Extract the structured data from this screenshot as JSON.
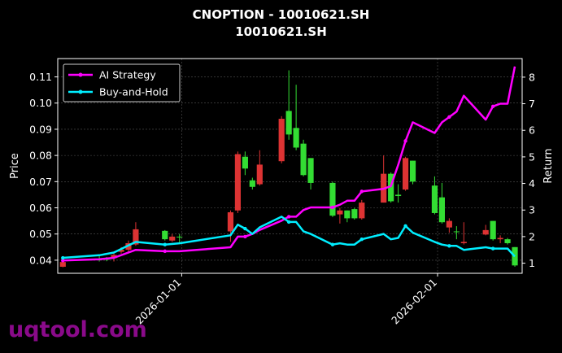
{
  "title_line1": "CNOPTION - 10010621.SH",
  "title_line2": "10010621.SH",
  "watermark": "uqtool.com",
  "colors": {
    "up": "#33dd33",
    "down": "#dd3333",
    "ai": "#ff00ff",
    "bh": "#00eeff",
    "grid": "#555555"
  },
  "chart_data": {
    "type": "candlestick+line",
    "x_tick_labels": [
      "2026-01-01",
      "2026-02-01"
    ],
    "ylabel": "Price",
    "y2label": "Return",
    "ylim": [
      0.035,
      0.117
    ],
    "y2lim": [
      0.62,
      8.7
    ],
    "y_ticks": [
      0.04,
      0.05,
      0.06,
      0.07,
      0.08,
      0.09,
      0.1,
      0.11
    ],
    "y_tick_labels": [
      "0.04",
      "0.05",
      "0.06",
      "0.07",
      "0.08",
      "0.09",
      "0.10",
      "0.11"
    ],
    "y2_ticks": [
      1,
      2,
      3,
      4,
      5,
      6,
      7,
      8
    ],
    "y2_tick_labels": [
      "1",
      "2",
      "3",
      "4",
      "5",
      "6",
      "7",
      "8"
    ],
    "grid": true,
    "legend": {
      "position": "top-left",
      "entries": [
        "AI Strategy",
        "Buy-and-Hold"
      ]
    },
    "candles": [
      {
        "x": 0,
        "o": 0.0393,
        "h": 0.0405,
        "l": 0.0373,
        "c": 0.0375
      },
      {
        "x": 5,
        "o": 0.04,
        "h": 0.0415,
        "l": 0.0395,
        "c": 0.0405
      },
      {
        "x": 6,
        "o": 0.0403,
        "h": 0.0412,
        "l": 0.0396,
        "c": 0.0405
      },
      {
        "x": 7,
        "o": 0.042,
        "h": 0.043,
        "l": 0.0395,
        "c": 0.0408
      },
      {
        "x": 8,
        "o": 0.044,
        "h": 0.045,
        "l": 0.0425,
        "c": 0.0432
      },
      {
        "x": 9,
        "o": 0.0465,
        "h": 0.0475,
        "l": 0.043,
        "c": 0.044
      },
      {
        "x": 10,
        "o": 0.0518,
        "h": 0.0545,
        "l": 0.0455,
        "c": 0.046
      },
      {
        "x": 14,
        "o": 0.048,
        "h": 0.0515,
        "l": 0.0475,
        "c": 0.0512
      },
      {
        "x": 15,
        "o": 0.049,
        "h": 0.05,
        "l": 0.047,
        "c": 0.0475
      },
      {
        "x": 16,
        "o": 0.049,
        "h": 0.05,
        "l": 0.0465,
        "c": 0.049
      },
      {
        "x": 23,
        "o": 0.0583,
        "h": 0.059,
        "l": 0.047,
        "c": 0.051
      },
      {
        "x": 24,
        "o": 0.0805,
        "h": 0.0815,
        "l": 0.058,
        "c": 0.059
      },
      {
        "x": 25,
        "o": 0.075,
        "h": 0.0815,
        "l": 0.0725,
        "c": 0.0795
      },
      {
        "x": 26,
        "o": 0.068,
        "h": 0.0715,
        "l": 0.067,
        "c": 0.0705
      },
      {
        "x": 27,
        "o": 0.0765,
        "h": 0.082,
        "l": 0.0685,
        "c": 0.069
      },
      {
        "x": 30,
        "o": 0.094,
        "h": 0.095,
        "l": 0.077,
        "c": 0.0778
      },
      {
        "x": 31,
        "o": 0.088,
        "h": 0.1125,
        "l": 0.086,
        "c": 0.097
      },
      {
        "x": 32,
        "o": 0.083,
        "h": 0.107,
        "l": 0.082,
        "c": 0.0905
      },
      {
        "x": 33,
        "o": 0.0725,
        "h": 0.086,
        "l": 0.072,
        "c": 0.0845
      },
      {
        "x": 34,
        "o": 0.0695,
        "h": 0.079,
        "l": 0.067,
        "c": 0.079
      },
      {
        "x": 37,
        "o": 0.057,
        "h": 0.07,
        "l": 0.0565,
        "c": 0.0695
      },
      {
        "x": 38,
        "o": 0.059,
        "h": 0.06,
        "l": 0.054,
        "c": 0.0575
      },
      {
        "x": 39,
        "o": 0.056,
        "h": 0.059,
        "l": 0.0545,
        "c": 0.059
      },
      {
        "x": 40,
        "o": 0.056,
        "h": 0.06,
        "l": 0.0555,
        "c": 0.0595
      },
      {
        "x": 41,
        "o": 0.062,
        "h": 0.063,
        "l": 0.0555,
        "c": 0.056
      },
      {
        "x": 44,
        "o": 0.073,
        "h": 0.08,
        "l": 0.062,
        "c": 0.062
      },
      {
        "x": 45,
        "o": 0.0625,
        "h": 0.0735,
        "l": 0.062,
        "c": 0.073
      },
      {
        "x": 46,
        "o": 0.0645,
        "h": 0.069,
        "l": 0.062,
        "c": 0.065
      },
      {
        "x": 47,
        "o": 0.079,
        "h": 0.0795,
        "l": 0.0665,
        "c": 0.067
      },
      {
        "x": 48,
        "o": 0.07,
        "h": 0.078,
        "l": 0.069,
        "c": 0.078
      },
      {
        "x": 51,
        "o": 0.058,
        "h": 0.072,
        "l": 0.0575,
        "c": 0.0685
      },
      {
        "x": 52,
        "o": 0.0545,
        "h": 0.0695,
        "l": 0.054,
        "c": 0.064
      },
      {
        "x": 53,
        "o": 0.055,
        "h": 0.056,
        "l": 0.0505,
        "c": 0.0525
      },
      {
        "x": 54,
        "o": 0.051,
        "h": 0.053,
        "l": 0.048,
        "c": 0.051
      },
      {
        "x": 55,
        "o": 0.047,
        "h": 0.0545,
        "l": 0.046,
        "c": 0.0465
      },
      {
        "x": 58,
        "o": 0.0515,
        "h": 0.0535,
        "l": 0.0495,
        "c": 0.0498
      },
      {
        "x": 59,
        "o": 0.048,
        "h": 0.055,
        "l": 0.0475,
        "c": 0.055
      },
      {
        "x": 60,
        "o": 0.0485,
        "h": 0.0495,
        "l": 0.0465,
        "c": 0.048
      },
      {
        "x": 61,
        "o": 0.0465,
        "h": 0.0485,
        "l": 0.046,
        "c": 0.048
      },
      {
        "x": 62,
        "o": 0.038,
        "h": 0.045,
        "l": 0.0375,
        "c": 0.045
      }
    ],
    "series": [
      {
        "name": "AI Strategy",
        "axis": "right",
        "points": [
          [
            0,
            1.1
          ],
          [
            5,
            1.15
          ],
          [
            7,
            1.2
          ],
          [
            10,
            1.5
          ],
          [
            14,
            1.45
          ],
          [
            16,
            1.45
          ],
          [
            23,
            1.6
          ],
          [
            24,
            2.0
          ],
          [
            25,
            2.0
          ],
          [
            26,
            2.1
          ],
          [
            27,
            2.25
          ],
          [
            30,
            2.6
          ],
          [
            31,
            2.75
          ],
          [
            32,
            2.75
          ],
          [
            33,
            3.0
          ],
          [
            34,
            3.1
          ],
          [
            37,
            3.1
          ],
          [
            38,
            3.2
          ],
          [
            39,
            3.35
          ],
          [
            40,
            3.35
          ],
          [
            41,
            3.7
          ],
          [
            44,
            3.8
          ],
          [
            45,
            3.9
          ],
          [
            46,
            4.7
          ],
          [
            47,
            5.6
          ],
          [
            48,
            6.3
          ],
          [
            51,
            5.9
          ],
          [
            52,
            6.3
          ],
          [
            53,
            6.5
          ],
          [
            54,
            6.7
          ],
          [
            55,
            7.3
          ],
          [
            58,
            6.4
          ],
          [
            59,
            6.9
          ],
          [
            60,
            7.0
          ],
          [
            61,
            7.0
          ],
          [
            62,
            8.4
          ]
        ]
      },
      {
        "name": "Buy-and-Hold",
        "axis": "right",
        "points": [
          [
            0,
            1.2
          ],
          [
            5,
            1.3
          ],
          [
            7,
            1.4
          ],
          [
            10,
            1.8
          ],
          [
            14,
            1.7
          ],
          [
            16,
            1.75
          ],
          [
            23,
            2.05
          ],
          [
            24,
            2.45
          ],
          [
            25,
            2.3
          ],
          [
            26,
            2.1
          ],
          [
            27,
            2.35
          ],
          [
            30,
            2.75
          ],
          [
            31,
            2.55
          ],
          [
            32,
            2.55
          ],
          [
            33,
            2.2
          ],
          [
            34,
            2.1
          ],
          [
            37,
            1.7
          ],
          [
            38,
            1.75
          ],
          [
            39,
            1.7
          ],
          [
            40,
            1.7
          ],
          [
            41,
            1.9
          ],
          [
            44,
            2.1
          ],
          [
            45,
            1.9
          ],
          [
            46,
            1.95
          ],
          [
            47,
            2.4
          ],
          [
            48,
            2.15
          ],
          [
            51,
            1.8
          ],
          [
            52,
            1.7
          ],
          [
            53,
            1.65
          ],
          [
            54,
            1.65
          ],
          [
            55,
            1.5
          ],
          [
            58,
            1.6
          ],
          [
            59,
            1.55
          ],
          [
            60,
            1.55
          ],
          [
            61,
            1.55
          ],
          [
            62,
            1.25
          ]
        ]
      }
    ],
    "x_tick_positions": [
      16.3,
      51.4
    ],
    "x_range": [
      -0.7,
      63
    ]
  }
}
